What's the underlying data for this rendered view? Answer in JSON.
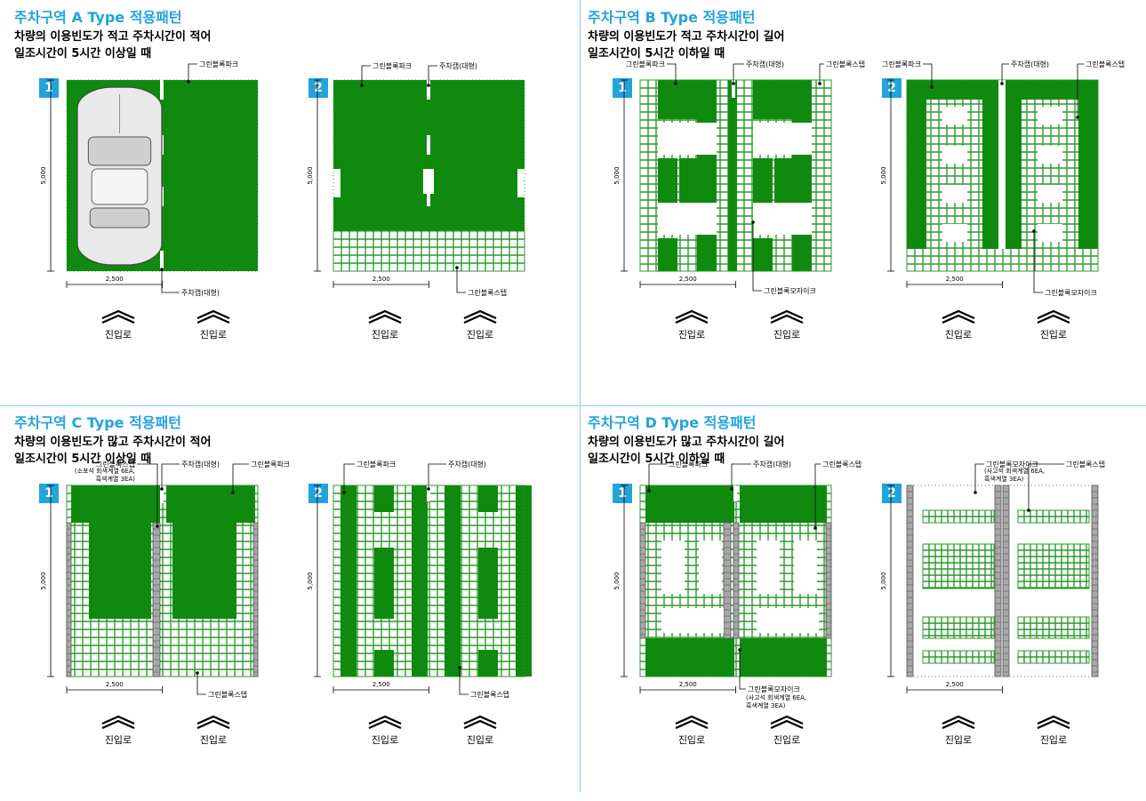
{
  "quadrants": [
    {
      "title": "주차구역 A Type 적용패턴",
      "desc1": "차량의 이용빈도가 적고 주차시간이 적어",
      "desc2": "일조시간이 5시간 이상일 때"
    },
    {
      "title": "주차구역 B Type 적용패턴",
      "desc1": "차량의 이용빈도가 적고 주차시간이 길어",
      "desc2": "일조시간이 5시간 이하일 때"
    },
    {
      "title": "주차구역 C Type 적용패턴",
      "desc1": "차량의 이용빈도가 많고 주차시간이 적어",
      "desc2": "일조시간이 5시간 이상일 때"
    },
    {
      "title": "주차구역 D Type 적용패턴",
      "desc1": "차량의 이용빈도가 많고 주차시간이 길어",
      "desc2": "일조시간이 5시간 이하일 때"
    }
  ],
  "badges": [
    "1",
    "2"
  ],
  "dims": {
    "width": "2,500",
    "height": "5,000"
  },
  "entry_label": "진입로",
  "labels": {
    "green_block_park": "그린블록파크",
    "parking_cap": "주차캡(대형)",
    "green_block_step": "그린블록스텝",
    "green_block_mosaic": "그린블록모자이크",
    "step_note1": "(소포석 회색계열 6EA,",
    "step_note2": "흑색계열 3EA)",
    "mosaic_note1": "(사고석 회색계열 6EA,",
    "mosaic_note2": "흑색계열 3EA)"
  },
  "colors": {
    "accent": "#22a3dc",
    "green": "#0f8a0f",
    "grid_line": "#2a9a2a",
    "gray_paver": "#a8a8a8"
  }
}
